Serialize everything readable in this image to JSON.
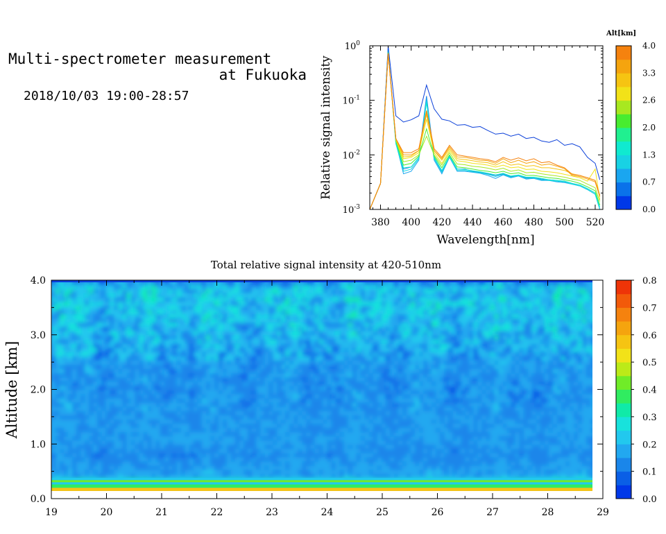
{
  "header": {
    "title_line1": "Multi-spectrometer measurement",
    "title_line2": "at Fukuoka",
    "time_range": "2018/10/03 19:00-28:57"
  },
  "chart_data": [
    {
      "type": "line",
      "xlabel": "Wavelength[nm]",
      "ylabel": "Relative signal intensity",
      "x_scale": "linear",
      "y_scale": "log",
      "xlim": [
        373,
        525
      ],
      "ylim": [
        0.001,
        1
      ],
      "xticks": [
        380,
        400,
        420,
        440,
        460,
        480,
        500,
        520
      ],
      "yticks": [
        {
          "base": "10",
          "exp": "-3",
          "value": 0.001
        },
        {
          "base": "10",
          "exp": "-2",
          "value": 0.01
        },
        {
          "base": "10",
          "exp": "-1",
          "value": 0.1
        },
        {
          "base": "10",
          "exp": "0",
          "value": 1
        }
      ],
      "colorbar": {
        "title": "Alt[km]",
        "ticks": [
          "0.0",
          "0.7",
          "1.3",
          "2.0",
          "2.6",
          "3.3",
          "4.0"
        ],
        "colors": [
          "#0038e8",
          "#0a72ea",
          "#1aa6f0",
          "#18d2e4",
          "#10ead0",
          "#20f090",
          "#48ec30",
          "#a8e820",
          "#f2e218",
          "#f6c412",
          "#f5a40e",
          "#f5820e"
        ]
      },
      "series": [
        {
          "color": "#0a3fd9",
          "x": [
            373,
            380,
            385,
            390,
            395,
            400,
            405,
            410,
            415,
            420,
            425,
            430,
            435,
            440,
            445,
            450,
            455,
            460,
            465,
            470,
            475,
            480,
            485,
            490,
            495,
            500,
            505,
            510,
            515,
            520,
            523
          ],
          "y": [
            0.001,
            0.003,
            1.0,
            0.052,
            0.04,
            0.044,
            0.052,
            0.19,
            0.07,
            0.045,
            0.042,
            0.035,
            0.036,
            0.032,
            0.033,
            0.028,
            0.024,
            0.025,
            0.022,
            0.024,
            0.02,
            0.021,
            0.018,
            0.017,
            0.019,
            0.015,
            0.016,
            0.014,
            0.009,
            0.007,
            0.0035
          ]
        },
        {
          "color": "#1a78e6",
          "x": [
            373,
            380,
            385,
            390,
            395,
            400,
            405,
            410,
            415,
            420,
            425,
            430,
            435,
            440,
            445,
            450,
            455,
            460,
            465,
            470,
            475,
            480,
            485,
            490,
            495,
            500,
            505,
            510,
            515,
            520,
            523
          ],
          "y": [
            0.001,
            0.003,
            0.85,
            0.018,
            0.0055,
            0.006,
            0.009,
            0.12,
            0.009,
            0.005,
            0.0095,
            0.0055,
            0.0055,
            0.005,
            0.0048,
            0.0045,
            0.0042,
            0.0045,
            0.004,
            0.0042,
            0.0038,
            0.0038,
            0.0036,
            0.0035,
            0.0034,
            0.0033,
            0.003,
            0.0028,
            0.0024,
            0.002,
            0.001
          ]
        },
        {
          "color": "#1aa6f0",
          "x": [
            373,
            380,
            385,
            390,
            395,
            400,
            405,
            410,
            415,
            420,
            425,
            430,
            435,
            440,
            445,
            450,
            455,
            460,
            465,
            470,
            475,
            480,
            485,
            490,
            495,
            500,
            505,
            510,
            515,
            520,
            523
          ],
          "y": [
            0.001,
            0.003,
            0.8,
            0.017,
            0.0045,
            0.005,
            0.008,
            0.11,
            0.008,
            0.0045,
            0.009,
            0.005,
            0.005,
            0.0048,
            0.0046,
            0.0042,
            0.0037,
            0.0043,
            0.0038,
            0.0041,
            0.0036,
            0.0037,
            0.0034,
            0.0034,
            0.0032,
            0.0031,
            0.0029,
            0.0027,
            0.0023,
            0.0019,
            0.001
          ]
        },
        {
          "color": "#18d2e4",
          "x": [
            373,
            380,
            385,
            390,
            395,
            400,
            405,
            410,
            415,
            420,
            425,
            430,
            435,
            440,
            445,
            450,
            455,
            460,
            465,
            470,
            475,
            480,
            485,
            490,
            495,
            500,
            505,
            510,
            515,
            520,
            523
          ],
          "y": [
            0.001,
            0.003,
            0.78,
            0.016,
            0.005,
            0.0055,
            0.0085,
            0.1,
            0.0085,
            0.0048,
            0.0092,
            0.0052,
            0.0052,
            0.0049,
            0.0047,
            0.0044,
            0.004,
            0.0044,
            0.0039,
            0.0042,
            0.0037,
            0.0038,
            0.0035,
            0.0034,
            0.0033,
            0.0032,
            0.0029,
            0.0027,
            0.0023,
            0.0019,
            0.001
          ]
        },
        {
          "color": "#10ead0",
          "x": [
            373,
            380,
            385,
            390,
            395,
            400,
            405,
            410,
            415,
            420,
            425,
            430,
            435,
            440,
            445,
            450,
            455,
            460,
            465,
            470,
            475,
            480,
            485,
            490,
            495,
            500,
            505,
            510,
            515,
            520,
            523
          ],
          "y": [
            0.001,
            0.003,
            0.76,
            0.017,
            0.0058,
            0.006,
            0.009,
            0.09,
            0.009,
            0.0052,
            0.0095,
            0.0055,
            0.0054,
            0.0051,
            0.0049,
            0.0046,
            0.0043,
            0.0046,
            0.0041,
            0.0043,
            0.0039,
            0.0039,
            0.0037,
            0.0035,
            0.0034,
            0.0033,
            0.003,
            0.0028,
            0.0024,
            0.002,
            0.0011
          ]
        },
        {
          "color": "#48ec30",
          "x": [
            373,
            380,
            385,
            390,
            395,
            400,
            405,
            410,
            415,
            420,
            425,
            430,
            435,
            440,
            445,
            450,
            455,
            460,
            465,
            470,
            475,
            480,
            485,
            490,
            495,
            500,
            505,
            510,
            515,
            520,
            523
          ],
          "y": [
            0.001,
            0.003,
            0.75,
            0.018,
            0.0065,
            0.007,
            0.0095,
            0.03,
            0.0095,
            0.0058,
            0.01,
            0.006,
            0.0058,
            0.0055,
            0.0052,
            0.005,
            0.0047,
            0.005,
            0.0045,
            0.0047,
            0.0042,
            0.0042,
            0.004,
            0.0038,
            0.0037,
            0.0035,
            0.0033,
            0.003,
            0.0026,
            0.0022,
            0.0012
          ]
        },
        {
          "color": "#a8e820",
          "x": [
            373,
            380,
            385,
            390,
            395,
            400,
            405,
            410,
            415,
            420,
            425,
            430,
            435,
            440,
            445,
            450,
            455,
            460,
            465,
            470,
            475,
            480,
            485,
            490,
            495,
            500,
            505,
            510,
            515,
            520,
            523
          ],
          "y": [
            0.001,
            0.003,
            0.74,
            0.019,
            0.0075,
            0.008,
            0.01,
            0.022,
            0.01,
            0.0065,
            0.011,
            0.0068,
            0.0066,
            0.0062,
            0.006,
            0.0057,
            0.0053,
            0.0057,
            0.005,
            0.0053,
            0.0047,
            0.0048,
            0.0045,
            0.0043,
            0.0041,
            0.0039,
            0.0036,
            0.0034,
            0.0029,
            0.0025,
            0.0014
          ]
        },
        {
          "color": "#f2e218",
          "x": [
            373,
            380,
            385,
            390,
            395,
            400,
            405,
            410,
            415,
            420,
            425,
            430,
            435,
            440,
            445,
            450,
            455,
            460,
            465,
            470,
            475,
            480,
            485,
            490,
            495,
            500,
            505,
            510,
            515,
            520,
            523
          ],
          "y": [
            0.001,
            0.003,
            0.73,
            0.019,
            0.0085,
            0.009,
            0.011,
            0.045,
            0.011,
            0.007,
            0.012,
            0.0078,
            0.0075,
            0.007,
            0.0068,
            0.0065,
            0.006,
            0.0065,
            0.0058,
            0.006,
            0.0054,
            0.0055,
            0.005,
            0.0049,
            0.0047,
            0.0044,
            0.0041,
            0.0038,
            0.0033,
            0.0055,
            0.0015
          ]
        },
        {
          "color": "#f6c412",
          "x": [
            373,
            380,
            385,
            390,
            395,
            400,
            405,
            410,
            415,
            420,
            425,
            430,
            435,
            440,
            445,
            450,
            455,
            460,
            465,
            470,
            475,
            480,
            485,
            490,
            495,
            500,
            505,
            510,
            515,
            520,
            523
          ],
          "y": [
            0.001,
            0.003,
            0.72,
            0.02,
            0.0092,
            0.0095,
            0.012,
            0.055,
            0.012,
            0.008,
            0.013,
            0.0085,
            0.0082,
            0.0078,
            0.0074,
            0.0072,
            0.0065,
            0.0075,
            0.0065,
            0.0068,
            0.0062,
            0.0064,
            0.0058,
            0.0058,
            0.0055,
            0.0052,
            0.0045,
            0.0042,
            0.0038,
            0.0034,
            0.0018
          ]
        },
        {
          "color": "#f5a40e",
          "x": [
            373,
            380,
            385,
            390,
            395,
            400,
            405,
            410,
            415,
            420,
            425,
            430,
            435,
            440,
            445,
            450,
            455,
            460,
            465,
            470,
            475,
            480,
            485,
            490,
            495,
            500,
            505,
            510,
            515,
            520,
            523
          ],
          "y": [
            0.001,
            0.003,
            0.72,
            0.02,
            0.01,
            0.01,
            0.012,
            0.06,
            0.012,
            0.0085,
            0.014,
            0.0092,
            0.009,
            0.0085,
            0.008,
            0.0078,
            0.007,
            0.0085,
            0.0072,
            0.008,
            0.007,
            0.0075,
            0.0065,
            0.0068,
            0.0062,
            0.0056,
            0.0042,
            0.004,
            0.0036,
            0.0032,
            0.0017
          ]
        },
        {
          "color": "#f5820e",
          "x": [
            373,
            380,
            385,
            390,
            395,
            400,
            405,
            410,
            415,
            420,
            425,
            430,
            435,
            440,
            445,
            450,
            455,
            460,
            465,
            470,
            475,
            480,
            485,
            490,
            495,
            500,
            505,
            510,
            515,
            520,
            523
          ],
          "y": [
            0.001,
            0.003,
            0.71,
            0.02,
            0.011,
            0.011,
            0.013,
            0.065,
            0.013,
            0.009,
            0.015,
            0.01,
            0.0095,
            0.009,
            0.0085,
            0.0082,
            0.0075,
            0.009,
            0.008,
            0.0088,
            0.0078,
            0.0085,
            0.0072,
            0.0075,
            0.0065,
            0.0058,
            0.0044,
            0.0042,
            0.0038,
            0.0034,
            0.0018
          ]
        }
      ]
    },
    {
      "type": "heatmap",
      "title": "Total relative signal intensity at 420-510nm",
      "xlabel": "",
      "ylabel": "Altitude [km]",
      "xlim": [
        19,
        29
      ],
      "ylim": [
        0,
        4
      ],
      "xticks": [
        "19",
        "20",
        "21",
        "22",
        "23",
        "24",
        "25",
        "26",
        "27",
        "28",
        "29"
      ],
      "yticks": [
        "0.0",
        "1.0",
        "2.0",
        "3.0",
        "4.0"
      ],
      "colorbar": {
        "ticks": [
          "0.0",
          "0.1",
          "0.2",
          "0.3",
          "0.4",
          "0.5",
          "0.6",
          "0.7",
          "0.8"
        ],
        "colors": [
          "#0038e8",
          "#0a5fe6",
          "#1a86ea",
          "#22a8f0",
          "#22c8ee",
          "#18e2dc",
          "#10eaa8",
          "#30ec60",
          "#70ec28",
          "#bcea18",
          "#f2e218",
          "#f6c412",
          "#f5a40e",
          "#f5820e",
          "#f25a0a",
          "#ee3408"
        ]
      },
      "altitude_profile_km": [
        0.0,
        0.1,
        0.2,
        0.3,
        0.4,
        0.6,
        0.8,
        1.0,
        1.5,
        2.0,
        2.4,
        2.8,
        3.2,
        3.6,
        3.9,
        4.0
      ],
      "mean_intensity_profile": [
        0.09,
        0.55,
        0.5,
        0.35,
        0.17,
        0.16,
        0.13,
        0.15,
        0.15,
        0.14,
        0.15,
        0.18,
        0.2,
        0.22,
        0.21,
        0.08
      ]
    }
  ]
}
